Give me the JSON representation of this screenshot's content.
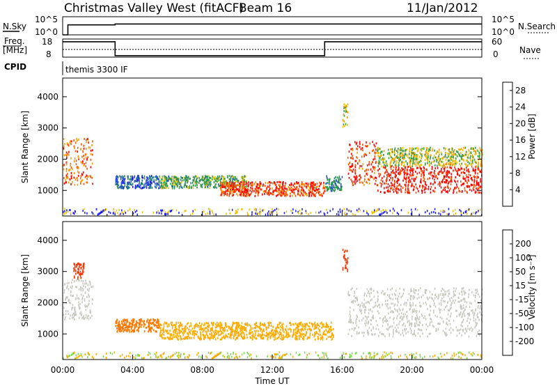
{
  "header": {
    "title": "Christmas Valley West (fitACF)",
    "beam": "Beam 16",
    "date": "11/Jan/2012"
  },
  "nsky_panel": {
    "left_label": "N.Sky",
    "right_label": "N.Search",
    "left_ticks": [
      "10^5",
      "10^0"
    ],
    "right_ticks": [
      "10^5",
      "10^0"
    ]
  },
  "freq_panel": {
    "left_label_1": "Freq.",
    "left_label_2": "[MHz]",
    "right_label": "Nave",
    "left_ticks": [
      "18",
      "8"
    ],
    "right_ticks": [
      "60",
      "0"
    ]
  },
  "cpid": {
    "label": "CPID",
    "value": "themis 3300 IF"
  },
  "colors": {
    "power_scale": [
      "#1a1aff",
      "#2255c8",
      "#2f8a64",
      "#33a040",
      "#f0c000",
      "#ff9900",
      "#ff5500",
      "#ff0000"
    ],
    "velocity_scale": [
      "#2222cc",
      "#2a7a78",
      "#228822",
      "#77dd44",
      "#bbbbbb",
      "#ffaa00",
      "#ff7700",
      "#ff3300",
      "#ee0000"
    ],
    "ground_scatter": "#c8c8c0"
  },
  "chart_data": [
    {
      "type": "heatmap",
      "name": "Power",
      "xlabel": "Time UT",
      "ylabel": "Slant Range [km]",
      "xlim": [
        0,
        24
      ],
      "ylim": [
        180,
        4600
      ],
      "x_ticks": [
        "00:00",
        "04:00",
        "08:00",
        "12:00",
        "16:00",
        "20:00",
        "00:00"
      ],
      "y_ticks": [
        "1000",
        "2000",
        "3000",
        "4000"
      ],
      "colorbar": {
        "label": "Power [dB]",
        "ticks": [
          "4",
          "8",
          "12",
          "16",
          "20",
          "24",
          "28"
        ],
        "range": [
          0,
          30
        ]
      },
      "regions": [
        {
          "t": [
            0.0,
            1.7
          ],
          "r": [
            1200,
            2700
          ],
          "value": 24
        },
        {
          "t": [
            3.0,
            5.5
          ],
          "r": [
            1100,
            1500
          ],
          "value": 6
        },
        {
          "t": [
            5.5,
            10.5
          ],
          "r": [
            1100,
            1500
          ],
          "value": 12
        },
        {
          "t": [
            9.0,
            15.0
          ],
          "r": [
            850,
            1300
          ],
          "value": 26
        },
        {
          "t": [
            15.0,
            16.0
          ],
          "r": [
            1000,
            1500
          ],
          "value": 10
        },
        {
          "t": [
            16.0,
            16.3
          ],
          "r": [
            3000,
            3800
          ],
          "value": 18
        },
        {
          "t": [
            16.3,
            18.0
          ],
          "r": [
            1200,
            2600
          ],
          "value": 26
        },
        {
          "t": [
            18.0,
            24.0
          ],
          "r": [
            950,
            1800
          ],
          "value": 28
        },
        {
          "t": [
            18.0,
            24.0
          ],
          "r": [
            1800,
            2400
          ],
          "value": 16
        }
      ]
    },
    {
      "type": "heatmap",
      "name": "Velocity",
      "xlabel": "Time UT",
      "ylabel": "Slant Range [km]",
      "xlim": [
        0,
        24
      ],
      "ylim": [
        180,
        4600
      ],
      "x_ticks": [
        "00:00",
        "04:00",
        "08:00",
        "12:00",
        "16:00",
        "20:00",
        "00:00"
      ],
      "y_ticks": [
        "1000",
        "2000",
        "3000",
        "4000"
      ],
      "colorbar": {
        "label": "Velocity [m s⁻¹]",
        "ticks": [
          "200",
          "100",
          "50",
          "15",
          "-15",
          "-50",
          "-100",
          "-200"
        ],
        "range": [
          -250,
          250
        ]
      },
      "regions": [
        {
          "t": [
            0.0,
            1.7
          ],
          "r": [
            1500,
            2800
          ],
          "value": 0
        },
        {
          "t": [
            0.6,
            1.2
          ],
          "r": [
            2800,
            3300
          ],
          "value": -200
        },
        {
          "t": [
            3.0,
            5.5
          ],
          "r": [
            1100,
            1500
          ],
          "value": -70
        },
        {
          "t": [
            5.5,
            15.5
          ],
          "r": [
            850,
            1400
          ],
          "value": -50
        },
        {
          "t": [
            16.0,
            16.3
          ],
          "r": [
            3000,
            3800
          ],
          "value": -200
        },
        {
          "t": [
            16.3,
            24.0
          ],
          "r": [
            950,
            2500
          ],
          "value": 0
        }
      ]
    },
    {
      "type": "line",
      "name": "N.Sky / N.Search",
      "x": [
        0,
        0.3,
        0.3,
        3.0,
        3.0,
        24
      ],
      "y": [
        0.0,
        0.0,
        0.55,
        0.55,
        0.6,
        0.6
      ]
    },
    {
      "type": "line",
      "name": "Freq / Nave",
      "x": [
        0,
        3.0,
        3.0,
        15.0,
        15.0,
        24
      ],
      "freq_mhz": [
        16.5,
        16.5,
        8.8,
        8.8,
        16.5,
        16.5
      ]
    }
  ]
}
